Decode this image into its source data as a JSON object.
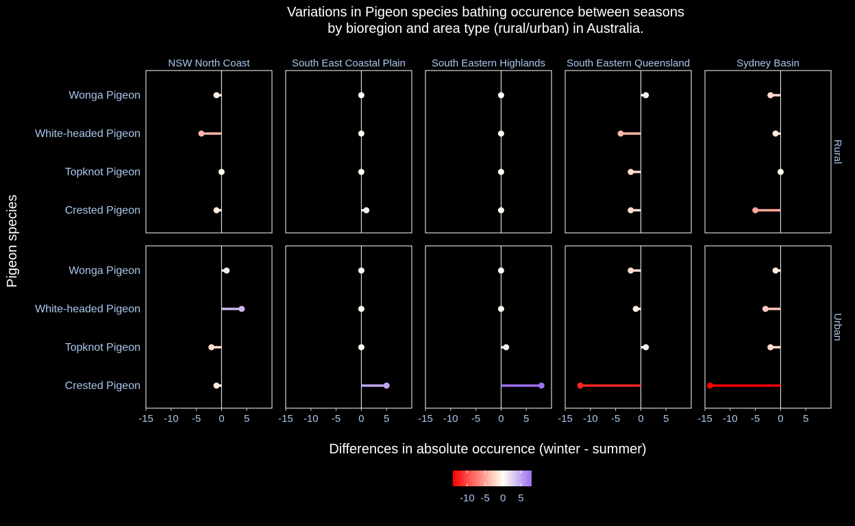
{
  "chart_data": {
    "type": "lollipop",
    "title_line1": "Variations in Pigeon species bathing occurence between seasons",
    "title_line2": "by bioregion and area type (rural/urban) in Australia.",
    "xlabel": "Differences in absolute occurence (winter - summer)",
    "ylabel": "Pigeon species",
    "xlim": [
      -15,
      10
    ],
    "xticks": [
      -15,
      -10,
      -5,
      0,
      5
    ],
    "bioregions": [
      "NSW North Coast",
      "South East Coastal Plain",
      "South Eastern Highlands",
      "South Eastern Queensland",
      "Sydney Basin"
    ],
    "area_types": [
      "Rural",
      "Urban"
    ],
    "species": [
      "Wonga Pigeon",
      "White-headed Pigeon",
      "Topknot Pigeon",
      "Crested Pigeon"
    ],
    "values": {
      "Rural": {
        "NSW North Coast": [
          -1,
          -4,
          0,
          -1
        ],
        "South East Coastal Plain": [
          0,
          0,
          0,
          1
        ],
        "South Eastern Highlands": [
          0,
          0,
          0,
          0
        ],
        "South Eastern Queensland": [
          1,
          -4,
          -2,
          -2
        ],
        "Sydney Basin": [
          -2,
          -1,
          0,
          -5
        ]
      },
      "Urban": {
        "NSW North Coast": [
          1,
          4,
          -2,
          -1
        ],
        "South East Coastal Plain": [
          0,
          0,
          0,
          5
        ],
        "South Eastern Highlands": [
          0,
          0,
          1,
          8
        ],
        "South Eastern Queensland": [
          -2,
          -1,
          1,
          -12
        ],
        "Sydney Basin": [
          -1,
          -3,
          -2,
          -14
        ]
      }
    },
    "legend": {
      "position": "bottom",
      "limits": [
        -14,
        8
      ],
      "ticks": [
        -10,
        -5,
        0,
        5
      ],
      "colors": {
        "low": "#ff0000",
        "mid": "#fffff0",
        "high": "#9c70f0"
      }
    },
    "grid": false,
    "background": "#000000",
    "panel_border_color": "#ffffff",
    "zero_line_color": "#ffffff"
  }
}
